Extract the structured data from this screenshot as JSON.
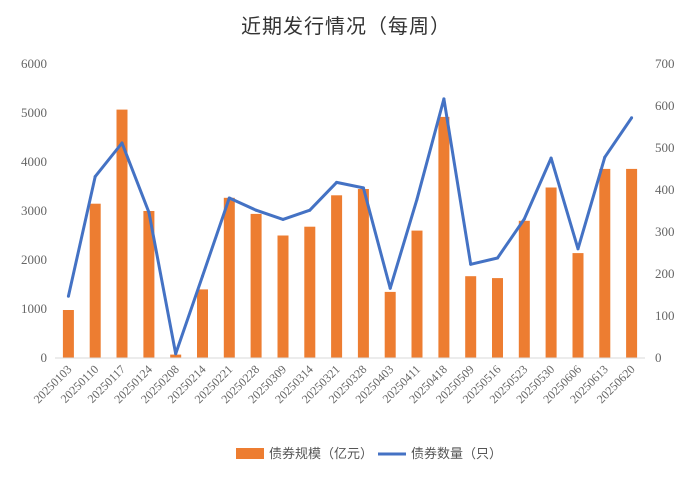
{
  "chart_data": {
    "type": "bar+line",
    "title": "近期发行情况（每周）",
    "categories": [
      "20250103",
      "20250110",
      "20250117",
      "20250124",
      "20250208",
      "20250214",
      "20250221",
      "20250228",
      "20250309",
      "20250314",
      "20250321",
      "20250328",
      "20250403",
      "20250411",
      "20250418",
      "20250509",
      "20250516",
      "20250523",
      "20250530",
      "20250606",
      "20250613",
      "20250620"
    ],
    "series": [
      {
        "name": "债券规模（亿元）",
        "type": "bar",
        "axis": "left",
        "color": "#ED7D31",
        "values": [
          980,
          3150,
          5070,
          3000,
          70,
          1400,
          3270,
          2940,
          2500,
          2680,
          3320,
          3450,
          1350,
          2600,
          4920,
          1670,
          1630,
          2800,
          3480,
          2140,
          3860,
          3860
        ]
      },
      {
        "name": "债券数量（只）",
        "type": "line",
        "axis": "right",
        "color": "#4472C4",
        "values": [
          147,
          432,
          512,
          347,
          10,
          195,
          381,
          352,
          330,
          352,
          418,
          405,
          166,
          378,
          617,
          223,
          238,
          331,
          476,
          260,
          478,
          572
        ]
      }
    ],
    "y_left": {
      "min": 0,
      "max": 6000,
      "ticks": [
        "0",
        "1000",
        "2000",
        "3000",
        "4000",
        "5000",
        "6000"
      ]
    },
    "y_right": {
      "min": 0,
      "max": 700,
      "ticks": [
        "0",
        "100",
        "200",
        "300",
        "400",
        "500",
        "600",
        "700"
      ]
    },
    "grid": false,
    "legend": "bottom"
  }
}
